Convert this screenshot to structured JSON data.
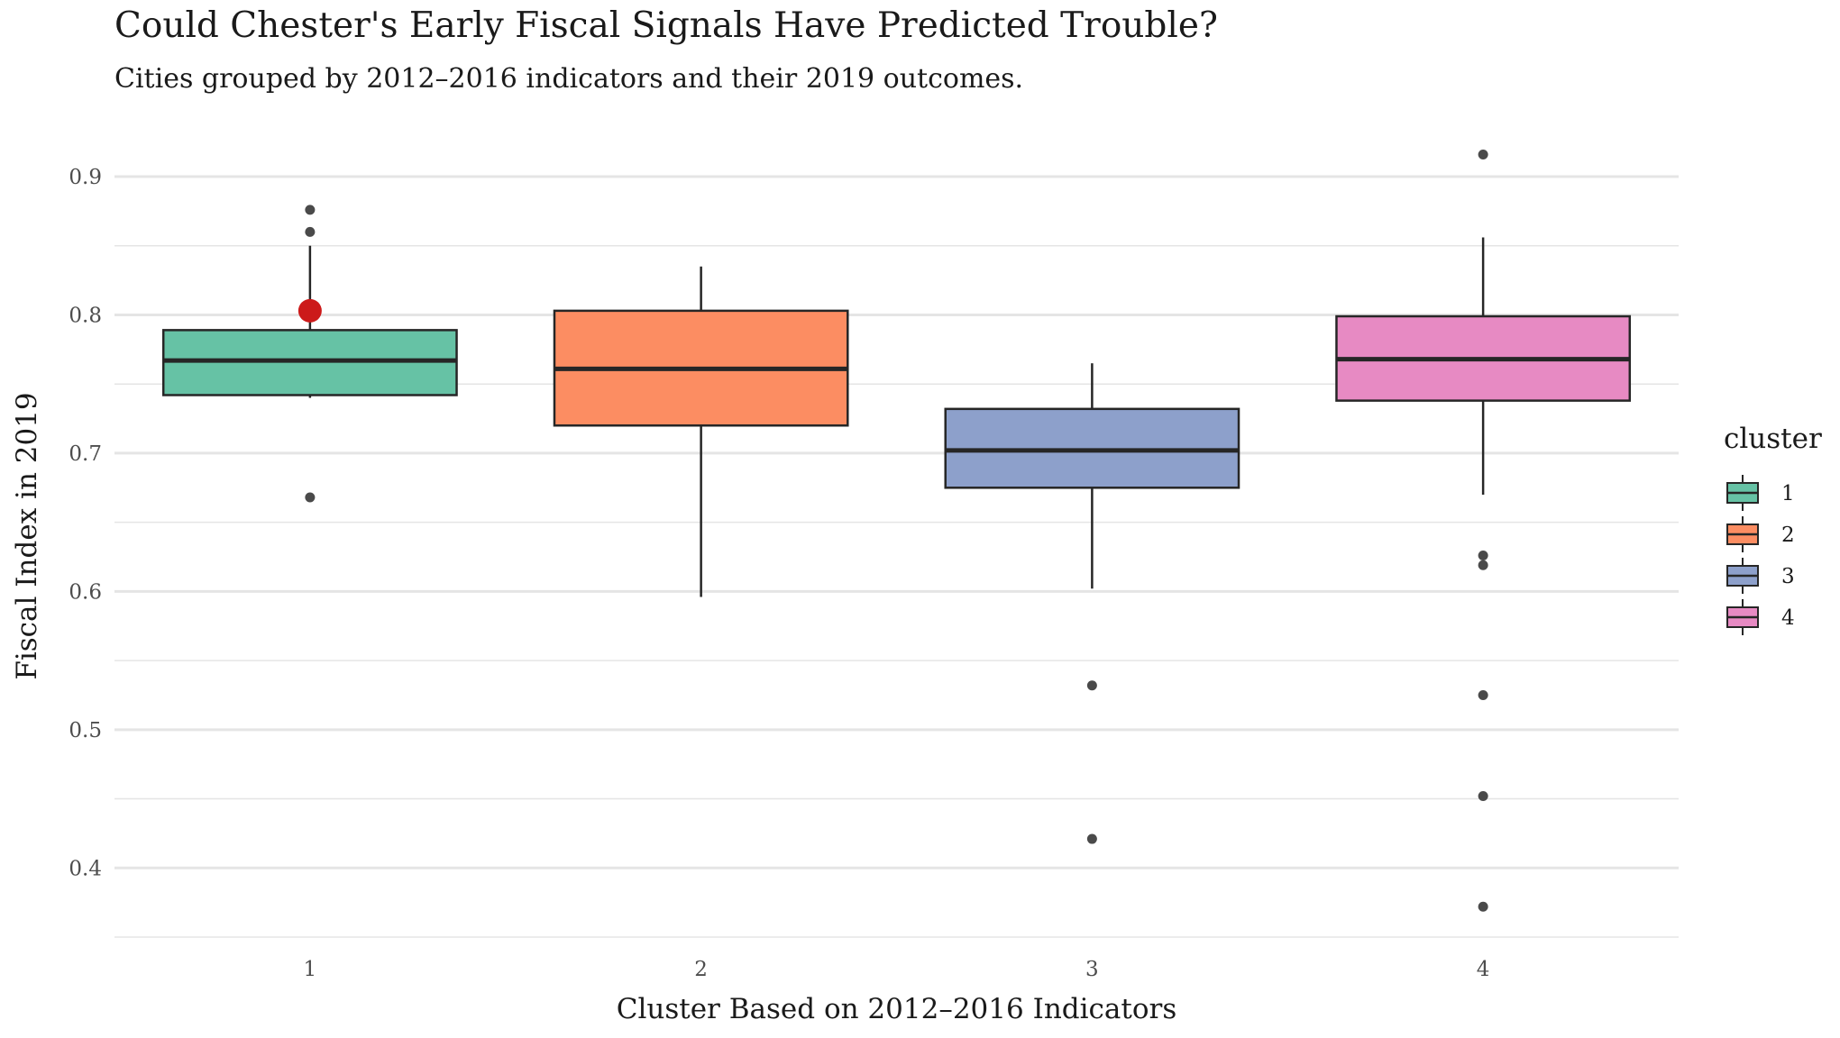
{
  "chart_data": {
    "type": "box",
    "title": "Could Chester's Early Fiscal Signals Have Predicted Trouble?",
    "subtitle": "Cities grouped by 2012–2016 indicators and their 2019 outcomes.",
    "xlabel": "Cluster Based on 2012–2016 Indicators",
    "ylabel": "Fiscal Index in 2019",
    "categories": [
      "1",
      "2",
      "3",
      "4"
    ],
    "ylim": [
      0.35,
      0.93
    ],
    "yticks": [
      0.4,
      0.5,
      0.6,
      0.7,
      0.8,
      0.9
    ],
    "ytick_labels": [
      "0.4",
      "0.5",
      "0.6",
      "0.7",
      "0.8",
      "0.9"
    ],
    "grid": true,
    "legend": {
      "title": "cluster",
      "position": "right",
      "entries": [
        "1",
        "2",
        "3",
        "4"
      ]
    },
    "colors": {
      "1": "#66c2a5",
      "2": "#fc8d62",
      "3": "#8da0cb",
      "4": "#e78ac3",
      "outline": "#262626",
      "highlight": "#cc1a1a",
      "outlier": "#4a4a4a",
      "grid": "#e5e5e5"
    },
    "boxes": [
      {
        "cluster": "1",
        "whisker_low": 0.74,
        "q1": 0.742,
        "median": 0.767,
        "q3": 0.789,
        "whisker_high": 0.85,
        "outliers": [
          0.876,
          0.86,
          0.668
        ]
      },
      {
        "cluster": "2",
        "whisker_low": 0.596,
        "q1": 0.72,
        "median": 0.761,
        "q3": 0.803,
        "whisker_high": 0.835,
        "outliers": []
      },
      {
        "cluster": "3",
        "whisker_low": 0.602,
        "q1": 0.675,
        "median": 0.702,
        "q3": 0.732,
        "whisker_high": 0.765,
        "outliers": [
          0.532,
          0.421
        ]
      },
      {
        "cluster": "4",
        "whisker_low": 0.67,
        "q1": 0.738,
        "median": 0.768,
        "q3": 0.799,
        "whisker_high": 0.856,
        "outliers": [
          0.916,
          0.626,
          0.619,
          0.525,
          0.452,
          0.372
        ]
      }
    ],
    "highlight": {
      "cluster": "1",
      "value": 0.803
    }
  }
}
